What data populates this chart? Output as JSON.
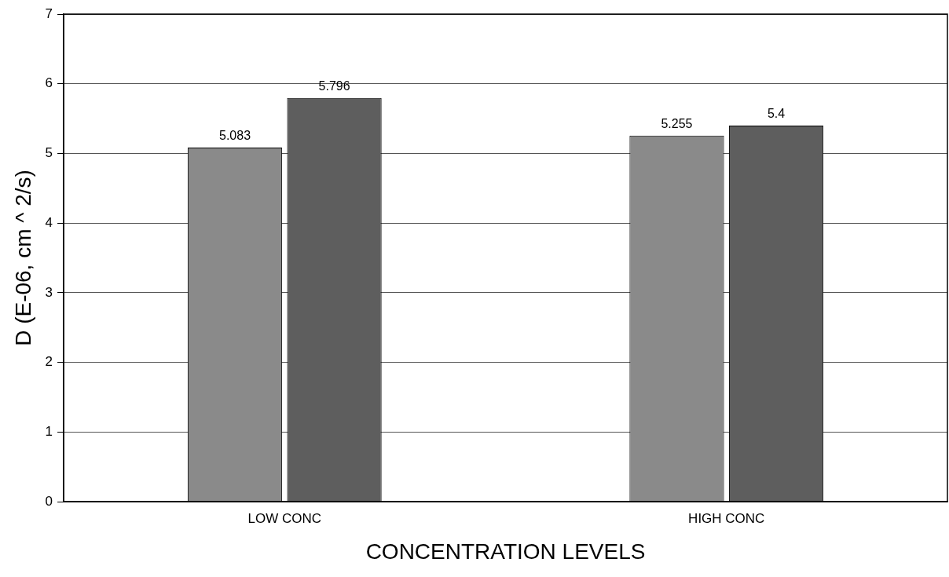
{
  "chart_data": {
    "type": "bar",
    "xlabel": "CONCENTRATION LEVELS",
    "ylabel": "D (E-06, cm ^ 2/s)",
    "categories": [
      "LOW CONC",
      "HIGH CONC"
    ],
    "series": [
      {
        "color": "#8a8a8a",
        "values": [
          5.083,
          5.255
        ]
      },
      {
        "color": "#5e5e5e",
        "values": [
          5.796,
          5.4
        ]
      }
    ],
    "ylim": [
      0,
      7
    ],
    "yticks": [
      0,
      1,
      2,
      3,
      4,
      5,
      6,
      7
    ],
    "grid": "y",
    "data_labels": true,
    "legend": false
  }
}
